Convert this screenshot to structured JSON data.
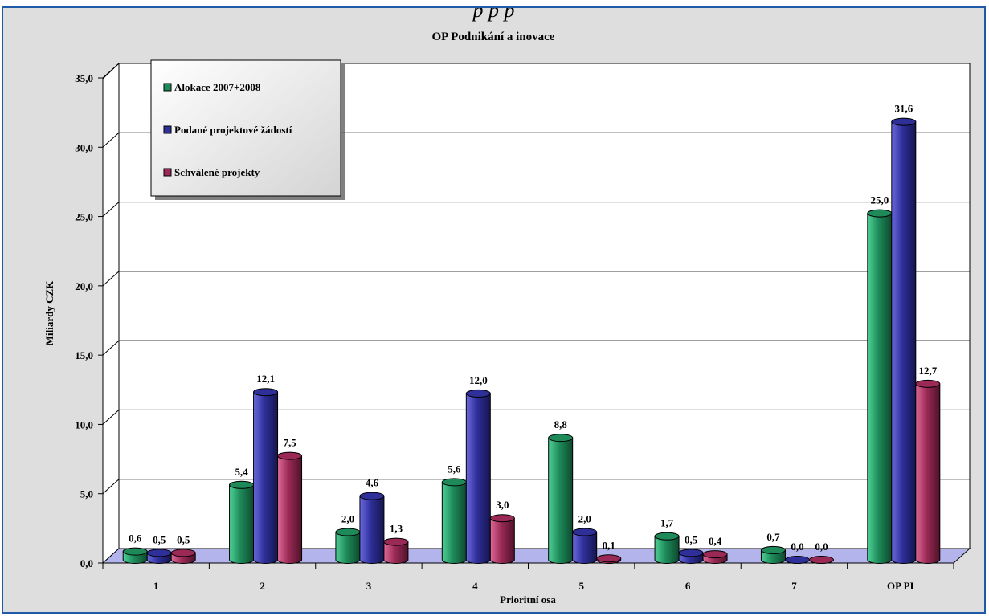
{
  "page_title": "p                                                                      p   p",
  "colors": {
    "series": [
      "#1e8a5a",
      "#2f2f9a",
      "#9a2a55"
    ],
    "frame_border": "#1f5aa6",
    "floor": "#b4b4ec",
    "background": "#dedede"
  },
  "chart_data": {
    "type": "bar",
    "title": "OP Podnikání a inovace",
    "xlabel": "Prioritní osa",
    "ylabel": "Miliardy CZK",
    "categories": [
      "1",
      "2",
      "3",
      "4",
      "5",
      "6",
      "7",
      "OP PI"
    ],
    "series": [
      {
        "name": "Alokace 2007+2008",
        "values": [
          0.6,
          5.4,
          2.0,
          5.6,
          8.8,
          1.7,
          0.7,
          25.0
        ],
        "labels": [
          "0,6",
          "5,4",
          "2,0",
          "5,6",
          "8,8",
          "1,7",
          "0,7",
          "25,0"
        ]
      },
      {
        "name": "Podané projektové žádostí",
        "values": [
          0.5,
          12.1,
          4.6,
          12.0,
          2.0,
          0.5,
          0.0,
          31.6
        ],
        "labels": [
          "0,5",
          "12,1",
          "4,6",
          "12,0",
          "2,0",
          "0,5",
          "0,0",
          "31,6"
        ]
      },
      {
        "name": "Schválené projekty",
        "values": [
          0.5,
          7.5,
          1.3,
          3.0,
          0.1,
          0.4,
          0.0,
          12.7
        ],
        "labels": [
          "0,5",
          "7,5",
          "1,3",
          "3,0",
          "0,1",
          "0,4",
          "0,0",
          "12,7"
        ]
      }
    ],
    "ylim": [
      0,
      35
    ],
    "yticks": [
      "0,0",
      "5,0",
      "10,0",
      "15,0",
      "20,0",
      "25,0",
      "30,0",
      "35,0"
    ],
    "grid": true,
    "legend_position": "top-left"
  }
}
